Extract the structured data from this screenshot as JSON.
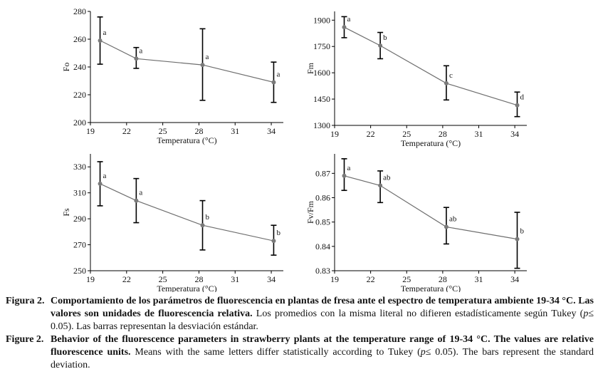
{
  "charts": [
    {
      "id": "fo",
      "type": "line",
      "x": [
        19.8,
        22.8,
        28.3,
        34.2
      ],
      "values": [
        259,
        246,
        241.5,
        229
      ],
      "err_low": [
        242,
        239,
        216,
        214.5
      ],
      "err_high": [
        276,
        254,
        267.5,
        243.5
      ],
      "letters": [
        "a",
        "a",
        "a",
        "a"
      ],
      "xlim": [
        19,
        35
      ],
      "ylim": [
        200,
        280
      ],
      "xticks": [
        19,
        22,
        25,
        28,
        31,
        34
      ],
      "yticks": [
        200,
        220,
        240,
        260,
        280
      ],
      "xlabel": "Temperatura (°C)",
      "ylabel": "Fo",
      "ydecimals": 0
    },
    {
      "id": "fm",
      "type": "line",
      "x": [
        19.8,
        22.8,
        28.3,
        34.2
      ],
      "values": [
        1860,
        1755,
        1540,
        1415
      ],
      "err_low": [
        1800,
        1680,
        1445,
        1350
      ],
      "err_high": [
        1920,
        1830,
        1640,
        1490
      ],
      "letters": [
        "a",
        "b",
        "c",
        "d"
      ],
      "xlim": [
        19,
        35
      ],
      "ylim": [
        1300,
        1950
      ],
      "xticks": [
        19,
        22,
        25,
        28,
        31,
        34
      ],
      "yticks": [
        1300,
        1450,
        1600,
        1750,
        1900
      ],
      "xlabel": "Temperatura (°C)",
      "ylabel": "Fm",
      "ydecimals": 0
    },
    {
      "id": "fs",
      "type": "line",
      "x": [
        19.8,
        22.8,
        28.3,
        34.2
      ],
      "values": [
        317,
        304,
        285,
        273
      ],
      "err_low": [
        300,
        287,
        266,
        262
      ],
      "err_high": [
        334,
        321,
        304,
        285
      ],
      "letters": [
        "a",
        "a",
        "b",
        "b"
      ],
      "xlim": [
        19,
        35
      ],
      "ylim": [
        250,
        340
      ],
      "xticks": [
        19,
        22,
        25,
        28,
        31,
        34
      ],
      "yticks": [
        250,
        270,
        290,
        310,
        330
      ],
      "xlabel": "Temperatura (°C)",
      "ylabel": "Fs",
      "ydecimals": 0
    },
    {
      "id": "fvfm",
      "type": "line",
      "x": [
        19.8,
        22.8,
        28.3,
        34.2
      ],
      "values": [
        0.869,
        0.865,
        0.848,
        0.843
      ],
      "err_low": [
        0.863,
        0.858,
        0.841,
        0.831
      ],
      "err_high": [
        0.876,
        0.871,
        0.856,
        0.854
      ],
      "letters": [
        "a",
        "ab",
        "ab",
        "b"
      ],
      "xlim": [
        19,
        35
      ],
      "ylim": [
        0.83,
        0.878
      ],
      "xticks": [
        19,
        22,
        25,
        28,
        31,
        34
      ],
      "yticks": [
        0.83,
        0.84,
        0.85,
        0.86,
        0.87
      ],
      "xlabel": "Temperatura (°C)",
      "ylabel": "Fv/Fm",
      "ydecimals": 2
    }
  ],
  "caption": {
    "es_label": "Figura 2.",
    "es_bold": "Comportamiento de los parámetros de fluorescencia en plantas de fresa ante el espectro de temperatura ambiente 19-34 °C. Las valores son unidades de fluorescencia relativa.",
    "es_rest_1": " Los promedios con la misma literal no difieren estadísticamente según Tukey (",
    "es_p": "p",
    "es_rest_2": "≤ 0.05). Las barras representan la desviación estándar.",
    "en_label": "Figure 2.",
    "en_bold": "Behavior of the fluorescence parameters in strawberry plants at the temperature range of 19-34 °C. The values are relative fluorescence units.",
    "en_rest_1": " Means with the same letters differ statistically according to Tukey (",
    "en_p": "p",
    "en_rest_2": "≤ 0.05). The bars represent the standard deviation."
  },
  "colors": {
    "line": "#6e6e6e",
    "marker": "#7a7a7a",
    "errorbar": "#000000",
    "axis": "#000000"
  }
}
